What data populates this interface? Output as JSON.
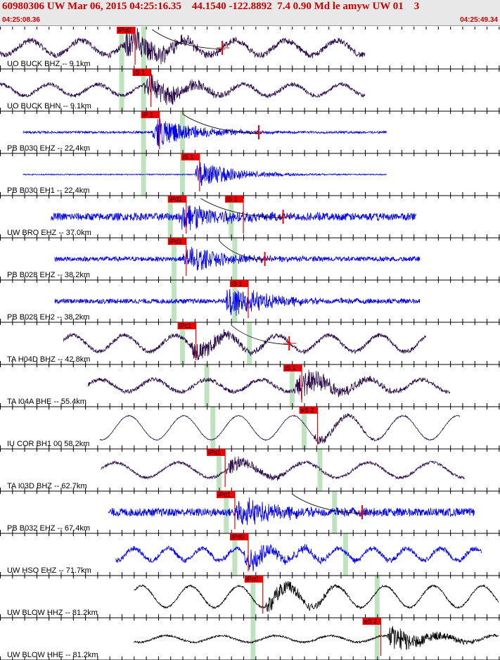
{
  "header": {
    "title": "60980306 UW Mar 06, 2015 04:25:16.35    44.1540 -122.8892  7.4 0.90 Md le amyw UW 01    3",
    "start_time": "04:25:08.36",
    "end_time": "04:25:49.34"
  },
  "colors": {
    "header_text": "#cc0000",
    "pick_flag": "#ee0000",
    "window_green": "#bfe3bf",
    "trace_blue": "#0000ee",
    "trace_purple": "#2a0a4a",
    "trace_black": "#000000"
  },
  "chart_data": {
    "type": "line",
    "x_unit": "seconds",
    "xlim": [
      0,
      40.98
    ],
    "traces": [
      {
        "label": "UO BUCK BHZ -- 9.1km",
        "color": "#2a0a4a",
        "start": 0.0,
        "end": 30.0,
        "amp": 0.42,
        "noise": 0.22,
        "wave": 0.55,
        "period": 4.2,
        "arrival": 10.2,
        "burst": 0.95,
        "picks": [
          {
            "label": "iPd0",
            "t": 9.6
          }
        ],
        "windows": [
          10.0,
          11.8
        ],
        "curve": [
          12.5,
          18.5
        ]
      },
      {
        "label": "UO BUCK BHN -- 9.1km",
        "color": "#2a0a4a",
        "start": 0.0,
        "end": 30.0,
        "amp": 0.4,
        "noise": 0.15,
        "wave": 0.45,
        "period": 4.0,
        "arrival": 11.8,
        "burst": 0.85,
        "picks": [
          {
            "label": "iS 1",
            "t": 10.9
          }
        ],
        "windows": [
          10.0,
          11.8
        ],
        "curve": null
      },
      {
        "label": "PB B030 EHZ -- 22.4km",
        "color": "#0000ee",
        "start": 1.9,
        "end": 31.8,
        "amp": 0.35,
        "noise": 0.1,
        "wave": 0.0,
        "period": 3.0,
        "arrival": 12.5,
        "burst": 1.0,
        "picks": [
          {
            "label": "iP 1",
            "t": 11.6
          }
        ],
        "windows": [
          11.8,
          15.0
        ],
        "curve": [
          15.0,
          21.5
        ]
      },
      {
        "label": "PB B030 EH1 -- 22.4km",
        "color": "#0000ee",
        "start": 1.9,
        "end": 31.8,
        "amp": 0.35,
        "noise": 0.05,
        "wave": 0.0,
        "period": 3.0,
        "arrival": 16.0,
        "burst": 0.85,
        "picks": [
          {
            "label": "iS 1",
            "t": 14.9
          }
        ],
        "windows": [
          11.8,
          15.0
        ],
        "curve": null
      },
      {
        "label": "UW BRO EHZ -- 37.0km",
        "color": "#0000ee",
        "start": 4.2,
        "end": 34.2,
        "amp": 0.4,
        "noise": 0.3,
        "wave": 0.0,
        "period": 3.0,
        "arrival": 14.7,
        "burst": 0.85,
        "picks": [
          {
            "label": "iPd1",
            "t": 13.8
          },
          {
            "label": "iS 1",
            "t": 18.5
          }
        ],
        "windows": [
          14.0,
          19.0
        ],
        "curve": [
          16.5,
          23.5
        ]
      },
      {
        "label": "PB B028 EHZ -- 38.2km",
        "color": "#0000ee",
        "start": 4.5,
        "end": 34.5,
        "amp": 0.3,
        "noise": 0.25,
        "wave": 0.0,
        "period": 3.0,
        "arrival": 15.0,
        "burst": 1.0,
        "picks": [
          {
            "label": "iPd1",
            "t": 13.8
          }
        ],
        "windows": [
          14.3,
          19.3
        ],
        "curve": [
          18.0,
          22.0
        ]
      },
      {
        "label": "PB B028 EH2 -- 38.2km",
        "color": "#0000ee",
        "start": 4.5,
        "end": 34.5,
        "amp": 0.38,
        "noise": 0.2,
        "wave": 0.0,
        "period": 3.0,
        "arrival": 18.5,
        "burst": 1.0,
        "picks": [
          {
            "label": "iS 1",
            "t": 18.9
          }
        ],
        "windows": [
          14.3,
          19.3
        ],
        "curve": null
      },
      {
        "label": "TA H04D BHZ -- 42.8km",
        "color": "#2a0a4a",
        "start": 5.2,
        "end": 35.0,
        "amp": 0.35,
        "noise": 0.18,
        "wave": 0.75,
        "period": 4.2,
        "arrival": 15.6,
        "burst": 0.65,
        "picks": [
          {
            "label": "iPc1",
            "t": 14.6
          }
        ],
        "windows": [
          15.0,
          20.5
        ],
        "curve": [
          19.0,
          24.0
        ]
      },
      {
        "label": "TA I04A BHE -- 55.4km",
        "color": "#2a0a4a",
        "start": 7.2,
        "end": 37.0,
        "amp": 0.35,
        "noise": 0.18,
        "wave": 0.55,
        "period": 4.4,
        "arrival": 24.2,
        "burst": 1.0,
        "picks": [
          {
            "label": "iS 1",
            "t": 23.3
          }
        ],
        "windows": [
          17.0,
          24.0
        ],
        "curve": null
      },
      {
        "label": "IU COR BH1 00 58.2km",
        "color": "#2a0a4a",
        "start": 8.2,
        "end": 37.8,
        "amp": 0.45,
        "noise": 0.03,
        "wave": 0.85,
        "period": 4.5,
        "arrival": 25.7,
        "burst": 0.25,
        "picks": [
          {
            "label": "eS 2",
            "t": 24.6
          }
        ],
        "windows": [
          17.5,
          25.0
        ],
        "curve": null
      },
      {
        "label": "TA I03D BHZ -- 62.7km",
        "color": "#2a0a4a",
        "start": 8.3,
        "end": 38.2,
        "amp": 0.32,
        "noise": 0.14,
        "wave": 0.75,
        "period": 5.2,
        "arrival": 18.5,
        "burst": 0.5,
        "picks": [
          {
            "label": "iPd1",
            "t": 17.0
          }
        ],
        "windows": [
          18.0,
          26.3
        ],
        "curve": null
      },
      {
        "label": "PB B032 EHZ -- 67.4km",
        "color": "#0000ee",
        "start": 8.9,
        "end": 39.0,
        "amp": 0.4,
        "noise": 0.32,
        "wave": 0.0,
        "period": 3.0,
        "arrival": 19.3,
        "burst": 0.8,
        "picks": [
          {
            "label": "iPd1",
            "t": 17.8
          }
        ],
        "windows": [
          18.6,
          27.5
        ],
        "curve": [
          24.0,
          30.0
        ]
      },
      {
        "label": "UW HSO EHZ -- 71.7km",
        "color": "#0000ee",
        "start": 9.5,
        "end": 39.6,
        "amp": 0.35,
        "noise": 0.22,
        "wave": 0.55,
        "period": 2.8,
        "arrival": 20.0,
        "burst": 0.7,
        "picks": [
          {
            "label": "iPd0",
            "t": 18.9
          }
        ],
        "windows": [
          19.3,
          28.4
        ],
        "curve": null
      },
      {
        "label": "UW BLOW HHZ -- 81.2km",
        "color": "#000000",
        "start": 11.0,
        "end": 40.98,
        "amp": 0.38,
        "noise": 0.08,
        "wave": 0.9,
        "period": 4.0,
        "arrival": 21.8,
        "burst": 0.55,
        "picks": [
          {
            "label": "iPc0",
            "t": 20.1
          }
        ],
        "windows": [
          20.8,
          31.0
        ],
        "curve": null
      },
      {
        "label": "UW BLOW HHE -- 81.2km",
        "color": "#000000",
        "start": 11.0,
        "end": 40.98,
        "amp": 0.3,
        "noise": 0.1,
        "wave": 0.35,
        "period": 4.5,
        "arrival": 31.8,
        "burst": 0.95,
        "picks": [
          {
            "label": "eS 2",
            "t": 29.8
          }
        ],
        "windows": [
          20.8,
          31.0
        ],
        "curve": null
      }
    ]
  }
}
